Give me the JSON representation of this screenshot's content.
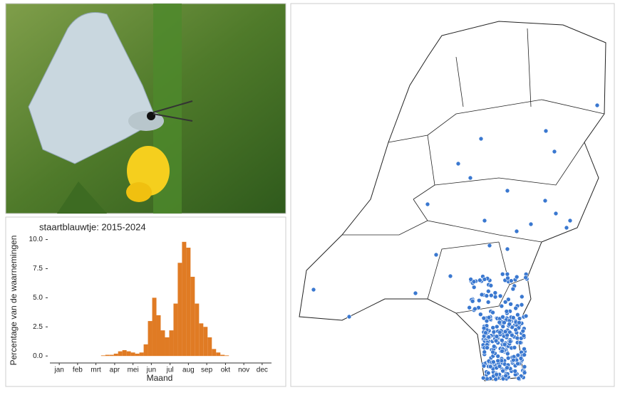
{
  "chart_data": {
    "type": "bar",
    "title": "staartblauwtje: 2015-2024",
    "x_label": "Maand",
    "y_label": "Percentage van de waarnemingen",
    "color": "#e07b24",
    "x": [
      1,
      2,
      3,
      4,
      5,
      6,
      7,
      8,
      9,
      10,
      11,
      12,
      13,
      14,
      15,
      16,
      17,
      18,
      19,
      20,
      21,
      22,
      23,
      24,
      25,
      26,
      27,
      28,
      29,
      30,
      31,
      32,
      33,
      34,
      35,
      36,
      37,
      38,
      39,
      40,
      41,
      42,
      43,
      44,
      45,
      46,
      47,
      48,
      49,
      50,
      51,
      52
    ],
    "values": [
      0,
      0,
      0,
      0,
      0,
      0,
      0,
      0,
      0,
      0,
      0,
      0,
      0.05,
      0.1,
      0.1,
      0.2,
      0.4,
      0.5,
      0.4,
      0.3,
      0.2,
      0.3,
      1.0,
      3.0,
      5.0,
      3.5,
      2.2,
      1.6,
      2.2,
      4.5,
      8.0,
      9.8,
      9.3,
      6.8,
      4.5,
      2.8,
      2.5,
      1.6,
      0.6,
      0.3,
      0.1,
      0.05,
      0,
      0,
      0,
      0,
      0,
      0,
      0,
      0,
      0,
      0
    ],
    "xlim": [
      0,
      52
    ],
    "xticks": [
      {
        "value": 2.2,
        "label": "jan"
      },
      {
        "value": 6.5,
        "label": "feb"
      },
      {
        "value": 10.8,
        "label": "mrt"
      },
      {
        "value": 15.2,
        "label": "apr"
      },
      {
        "value": 19.5,
        "label": "mei"
      },
      {
        "value": 23.8,
        "label": "jun"
      },
      {
        "value": 28.2,
        "label": "jul"
      },
      {
        "value": 32.5,
        "label": "aug"
      },
      {
        "value": 36.8,
        "label": "sep"
      },
      {
        "value": 41.2,
        "label": "okt"
      },
      {
        "value": 45.5,
        "label": "nov"
      },
      {
        "value": 49.8,
        "label": "dec"
      }
    ],
    "ylim": [
      -0.6,
      10.4
    ],
    "yticks": [
      {
        "value": 0,
        "label": "0.0"
      },
      {
        "value": 2.5,
        "label": "2.5"
      },
      {
        "value": 5,
        "label": "5.0"
      },
      {
        "value": 7.5,
        "label": "7.5"
      },
      {
        "value": 10,
        "label": "10.0"
      }
    ]
  }
}
